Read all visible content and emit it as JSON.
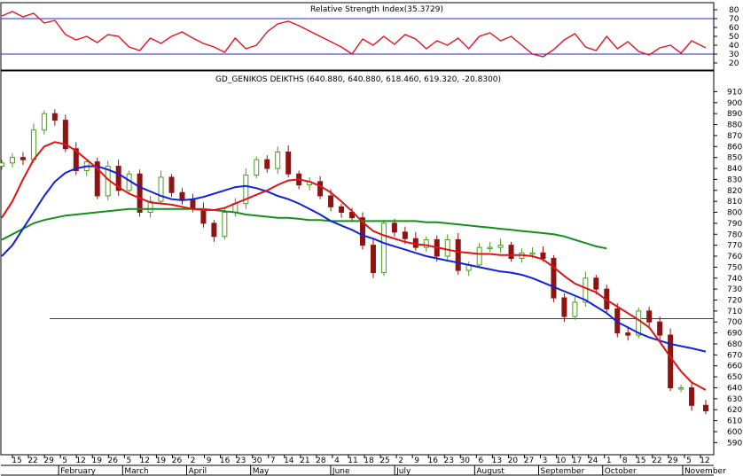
{
  "rsi_panel": {
    "title": "Relative Strength Index(35.3729)",
    "y_ticks": [
      80,
      70,
      60,
      50,
      40,
      30,
      20
    ],
    "levels": [
      70,
      30
    ],
    "ylim": [
      15,
      85
    ]
  },
  "price_panel": {
    "title": "GD_GENIKOS DEIKTHS (640.880, 640.880, 618.460, 619.320, -20.8300)",
    "y_ticks": [
      910,
      900,
      890,
      880,
      870,
      860,
      850,
      840,
      830,
      820,
      810,
      800,
      790,
      780,
      770,
      760,
      750,
      740,
      730,
      720,
      710,
      700,
      690,
      680,
      670,
      660,
      650,
      640,
      630,
      620,
      610,
      600,
      590
    ],
    "ylim": [
      583,
      916
    ],
    "hline": 703
  },
  "x_axis": {
    "day_labels": [
      "15",
      "22",
      "29",
      "5",
      "12",
      "19",
      "26",
      "5",
      "12",
      "19",
      "26",
      "2",
      "9",
      "16",
      "23",
      "30",
      "7",
      "14",
      "21",
      "28",
      "4",
      "11",
      "18",
      "25",
      "2",
      "9",
      "16",
      "23",
      "30",
      "6",
      "13",
      "20",
      "27",
      "3",
      "10",
      "17",
      "24",
      "1",
      "8",
      "15",
      "22",
      "29",
      "5",
      "12"
    ],
    "month_labels": [
      "February",
      "March",
      "April",
      "May",
      "June",
      "July",
      "August",
      "September",
      "October",
      "November"
    ],
    "month_label_index": [
      3,
      7,
      11,
      15,
      20,
      24,
      29,
      33,
      37,
      42
    ]
  },
  "colors": {
    "rsi_line": "#e8101a",
    "ma_short": "#dd1515",
    "ma_mid": "#1023d8",
    "ma_long": "#14901c",
    "candle_up": "#4c9b23",
    "candle_down": "#8e1414",
    "level_line": "#2a2ad8"
  },
  "chart_data": [
    {
      "type": "line",
      "title": "Relative Strength Index(35.3729)",
      "x_index": [
        0,
        3,
        6,
        9,
        12,
        15,
        18,
        21,
        24,
        27,
        30,
        33,
        36,
        39,
        42,
        45,
        48,
        51,
        54,
        57,
        60,
        63,
        66,
        69,
        72,
        75,
        78,
        81,
        84,
        87,
        90,
        93,
        96,
        99,
        102,
        105,
        108,
        111,
        114,
        117,
        120,
        123,
        126,
        129,
        132,
        135,
        138,
        141,
        144,
        147,
        150,
        153,
        156,
        159,
        162,
        165,
        168,
        171,
        174,
        177,
        180,
        183,
        186,
        189,
        192,
        195,
        199
      ],
      "series": [
        {
          "values": [
            73,
            78,
            72,
            76,
            65,
            68,
            52,
            46,
            50,
            43,
            52,
            50,
            38,
            34,
            48,
            42,
            50,
            55,
            48,
            42,
            38,
            32,
            48,
            36,
            40,
            55,
            64,
            67,
            62,
            56,
            50,
            44,
            38,
            30,
            47,
            40,
            50,
            41,
            52,
            47,
            36,
            45,
            40,
            48,
            36,
            50,
            54,
            45,
            50,
            40,
            30,
            27,
            35,
            46,
            53,
            38,
            34,
            50,
            36,
            44,
            33,
            29,
            37,
            40,
            31,
            45,
            37
          ]
        }
      ]
    },
    {
      "type": "candlestick",
      "title": "GD_GENIKOS DEIKTHS (640.880, 640.880, 618.460, 619.320, -20.8300)",
      "x_index": [
        0,
        3,
        6,
        9,
        12,
        15,
        18,
        21,
        24,
        27,
        30,
        33,
        36,
        39,
        42,
        45,
        48,
        51,
        54,
        57,
        60,
        63,
        66,
        69,
        72,
        75,
        78,
        81,
        84,
        87,
        90,
        93,
        96,
        99,
        102,
        105,
        108,
        111,
        114,
        117,
        120,
        123,
        126,
        129,
        132,
        135,
        138,
        141,
        144,
        147,
        150,
        153,
        156,
        159,
        162,
        165,
        168,
        171,
        174,
        177,
        180,
        183,
        186,
        189,
        192,
        195,
        199
      ],
      "series": [
        {
          "name": "close",
          "values": [
            845,
            850,
            848,
            875,
            890,
            884,
            858,
            838,
            846,
            815,
            842,
            820,
            835,
            800,
            810,
            832,
            818,
            812,
            803,
            790,
            778,
            800,
            808,
            834,
            848,
            840,
            855,
            835,
            825,
            828,
            815,
            805,
            800,
            795,
            770,
            745,
            790,
            782,
            776,
            768,
            775,
            760,
            775,
            747,
            752,
            768,
            768,
            770,
            758,
            763,
            763,
            758,
            722,
            705,
            718,
            740,
            730,
            712,
            690,
            688,
            710,
            700,
            688,
            640,
            640,
            624,
            619
          ]
        }
      ]
    },
    {
      "type": "line",
      "series": [
        {
          "values": [
            795,
            810,
            830,
            848,
            860,
            864,
            862,
            856,
            848,
            840,
            830,
            823,
            817,
            813,
            809,
            808,
            807,
            805,
            803,
            802,
            802,
            804,
            808,
            812,
            816,
            820,
            825,
            829,
            830,
            828,
            824,
            818,
            810,
            801,
            791,
            783,
            779,
            776,
            773,
            771,
            770,
            768,
            766,
            764,
            763,
            762,
            762,
            761,
            761,
            761,
            760,
            757,
            750,
            742,
            735,
            731,
            727,
            720,
            714,
            708,
            702,
            695,
            682,
            668,
            655,
            645,
            638
          ]
        },
        {
          "values": [
            760,
            770,
            785,
            800,
            815,
            828,
            836,
            840,
            842,
            842,
            839,
            835,
            829,
            823,
            819,
            815,
            812,
            811,
            812,
            814,
            817,
            820,
            823,
            824,
            822,
            819,
            815,
            812,
            808,
            803,
            798,
            792,
            788,
            784,
            779,
            776,
            772,
            769,
            766,
            763,
            760,
            758,
            756,
            754,
            752,
            750,
            748,
            746,
            745,
            743,
            740,
            736,
            732,
            728,
            724,
            720,
            714,
            708,
            700,
            695,
            690,
            686,
            683,
            680,
            678,
            676,
            673
          ]
        },
        {
          "values": [
            775,
            780,
            785,
            790,
            793,
            795,
            797,
            798,
            799,
            800,
            801,
            802,
            803,
            803,
            803,
            803,
            803,
            803,
            803,
            803,
            802,
            801,
            800,
            798,
            797,
            796,
            795,
            795,
            794,
            793,
            793,
            792,
            792,
            792,
            792,
            792,
            792,
            792,
            792,
            792,
            791,
            791,
            790,
            789,
            788,
            787,
            786,
            785,
            784,
            783,
            782,
            781,
            780,
            778,
            775,
            772,
            769,
            767
          ]
        }
      ]
    }
  ]
}
